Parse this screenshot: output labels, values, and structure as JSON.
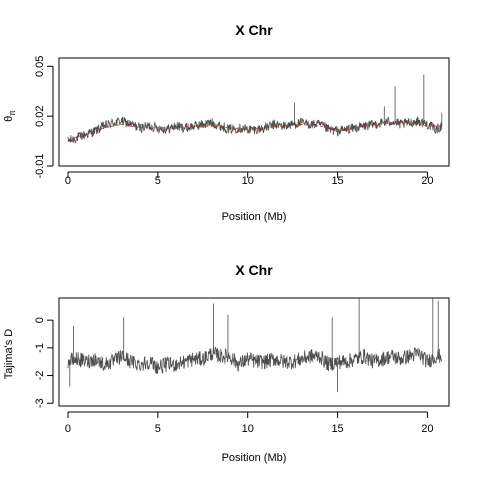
{
  "colors": {
    "series_line": "#4d4d4d",
    "smooth_line": "#c0392b",
    "axis": "#000000",
    "background": "#ffffff"
  },
  "chart_data": [
    {
      "type": "line",
      "title": "X Chr",
      "xlabel": "Position (Mb)",
      "ylabel": "θ",
      "ylabel_subscript": "π",
      "xlim": [
        -0.5,
        21.2
      ],
      "ylim": [
        -0.01,
        0.055
      ],
      "xticks": [
        0,
        5,
        10,
        15,
        20
      ],
      "xtick_labels": [
        "0",
        "5",
        "10",
        "15",
        "20"
      ],
      "yticks": [
        -0.01,
        0.02,
        0.05
      ],
      "ytick_labels": [
        "-0.01",
        "0.02",
        "0.05"
      ],
      "grid": false,
      "series": [
        {
          "style": "thin-line",
          "x": [
            0.0,
            0.5,
            1.0,
            1.5,
            2.0,
            2.5,
            3.0,
            3.5,
            4.0,
            4.5,
            5.0,
            5.5,
            6.0,
            6.5,
            7.0,
            7.5,
            8.0,
            8.5,
            9.0,
            9.5,
            10.0,
            10.5,
            11.0,
            11.5,
            12.0,
            12.5,
            13.0,
            13.5,
            14.0,
            14.5,
            15.0,
            15.5,
            16.0,
            16.5,
            17.0,
            17.5,
            18.0,
            18.5,
            19.0,
            19.5,
            20.0,
            20.5,
            20.8
          ],
          "values": [
            0.005,
            0.007,
            0.009,
            0.011,
            0.014,
            0.016,
            0.017,
            0.015,
            0.013,
            0.014,
            0.013,
            0.012,
            0.014,
            0.013,
            0.014,
            0.015,
            0.016,
            0.014,
            0.012,
            0.013,
            0.012,
            0.012,
            0.013,
            0.015,
            0.014,
            0.015,
            0.016,
            0.015,
            0.015,
            0.012,
            0.011,
            0.012,
            0.013,
            0.014,
            0.015,
            0.016,
            0.017,
            0.015,
            0.016,
            0.017,
            0.015,
            0.012,
            0.014
          ]
        },
        {
          "style": "smooth",
          "x": [
            0.0,
            1.0,
            2.0,
            3.0,
            4.0,
            5.0,
            6.0,
            7.0,
            8.0,
            9.0,
            10.0,
            11.0,
            12.0,
            13.0,
            14.0,
            15.0,
            16.0,
            17.0,
            18.0,
            19.0,
            20.0,
            20.8
          ],
          "values": [
            0.006,
            0.009,
            0.013,
            0.015,
            0.013,
            0.013,
            0.013,
            0.014,
            0.014,
            0.013,
            0.012,
            0.013,
            0.014,
            0.015,
            0.014,
            0.012,
            0.013,
            0.015,
            0.016,
            0.016,
            0.014,
            0.014
          ]
        }
      ],
      "spikes": [
        {
          "x": 18.2,
          "value": 0.038
        },
        {
          "x": 19.8,
          "value": 0.045
        },
        {
          "x": 12.6,
          "value": 0.028
        },
        {
          "x": 17.6,
          "value": 0.026
        },
        {
          "x": 20.8,
          "value": 0.022
        }
      ]
    },
    {
      "type": "line",
      "title": "X Chr",
      "xlabel": "Position (Mb)",
      "ylabel": "Tajima's D",
      "xlim": [
        -0.5,
        21.2
      ],
      "ylim": [
        -3.1,
        0.8
      ],
      "xticks": [
        0,
        5,
        10,
        15,
        20
      ],
      "xtick_labels": [
        "0",
        "5",
        "10",
        "15",
        "20"
      ],
      "yticks": [
        -3,
        -2,
        -1,
        0
      ],
      "ytick_labels": [
        "-3",
        "-2",
        "-1",
        "0"
      ],
      "grid": false,
      "series": [
        {
          "style": "thin-line",
          "x": [
            0.0,
            0.5,
            1.0,
            1.5,
            2.0,
            2.5,
            3.0,
            3.5,
            4.0,
            4.5,
            5.0,
            5.5,
            6.0,
            6.5,
            7.0,
            7.5,
            8.0,
            8.5,
            9.0,
            9.5,
            10.0,
            10.5,
            11.0,
            11.5,
            12.0,
            12.5,
            13.0,
            13.5,
            14.0,
            14.5,
            15.0,
            15.5,
            16.0,
            16.5,
            17.0,
            17.5,
            18.0,
            18.5,
            19.0,
            19.5,
            20.0,
            20.5,
            20.8
          ],
          "values": [
            -1.5,
            -1.4,
            -1.5,
            -1.4,
            -1.6,
            -1.5,
            -1.3,
            -1.5,
            -1.6,
            -1.5,
            -1.7,
            -1.6,
            -1.6,
            -1.5,
            -1.4,
            -1.4,
            -1.2,
            -1.3,
            -1.3,
            -1.6,
            -1.4,
            -1.5,
            -1.5,
            -1.4,
            -1.5,
            -1.5,
            -1.4,
            -1.3,
            -1.3,
            -1.6,
            -1.5,
            -1.5,
            -1.4,
            -1.3,
            -1.5,
            -1.4,
            -1.3,
            -1.4,
            -1.3,
            -1.2,
            -1.5,
            -1.3,
            -1.3
          ]
        }
      ],
      "spikes": [
        {
          "x": 16.2,
          "value": 0.8
        },
        {
          "x": 20.3,
          "value": 0.8
        },
        {
          "x": 20.6,
          "value": 0.7
        },
        {
          "x": 8.1,
          "value": 0.6
        },
        {
          "x": 8.9,
          "value": 0.2
        },
        {
          "x": 14.7,
          "value": 0.1
        },
        {
          "x": 3.1,
          "value": 0.1
        },
        {
          "x": 0.3,
          "value": -0.2
        },
        {
          "x": 15.0,
          "value": -2.6
        },
        {
          "x": 0.1,
          "value": -2.4
        }
      ]
    }
  ]
}
